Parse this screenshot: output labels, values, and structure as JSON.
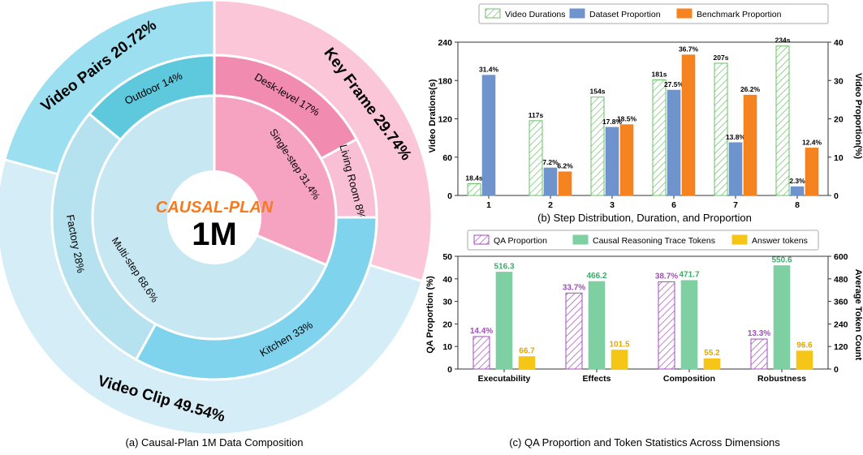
{
  "chart_data": [
    {
      "type": "pie",
      "caption": "(a) Causal-Plan 1M Data Composition",
      "center_title": "CAUSAL-PLAN",
      "center_value": "1M",
      "outer_ring": [
        {
          "label": "Video Pairs 20.72%",
          "value": 20.72,
          "color": "#9bdff0"
        },
        {
          "label": "Key Frame 29.74%",
          "value": 29.74,
          "color": "#fbc6d7"
        },
        {
          "label": "Video Clip 49.54%",
          "value": 49.54,
          "color": "#d4edf6"
        }
      ],
      "middle_ring": [
        {
          "label": "Outdoor 14%",
          "value": 14,
          "color": "#5ec8dc"
        },
        {
          "label": "Desk-level 17%",
          "value": 17,
          "color": "#f28bb0"
        },
        {
          "label": "Living Room 8%",
          "value": 8,
          "color": "#f9bfd4"
        },
        {
          "label": "Kitchen 33%",
          "value": 33,
          "color": "#7fd3ec"
        },
        {
          "label": "Factory 28%",
          "value": 28,
          "color": "#b6e1ee"
        }
      ],
      "inner_ring": [
        {
          "label": "Single-step 31.4%",
          "value": 31.4,
          "color": "#f6a3c1"
        },
        {
          "label": "Multi-step 68.6%",
          "value": 68.6,
          "color": "#c7e7f3"
        }
      ],
      "colors": {
        "center_title": "#f47b20",
        "center_value": "#000000"
      }
    },
    {
      "type": "bar",
      "caption": "(b) Step Distribution, Duration, and Proportion",
      "categories": [
        "1",
        "2",
        "3",
        "6",
        "7",
        "8"
      ],
      "series": [
        {
          "name": "Video Durations",
          "axis": "left",
          "values": [
            18.4,
            117,
            154,
            181,
            207,
            234
          ],
          "labels": [
            "18.4s",
            "117s",
            "154s",
            "181s",
            "207s",
            "234s"
          ],
          "color": "#6cbf6a",
          "pattern": "hatch"
        },
        {
          "name": "Dataset Proportion",
          "axis": "right",
          "values": [
            31.4,
            7.2,
            17.8,
            27.5,
            13.8,
            2.3
          ],
          "labels": [
            "31.4%",
            "7.2%",
            "17.8%",
            "27.5%",
            "13.8%",
            "2.3%"
          ],
          "color": "#6f93cc"
        },
        {
          "name": "Benchmark Proportion",
          "axis": "right",
          "values": [
            null,
            6.2,
            18.5,
            36.7,
            26.2,
            12.4
          ],
          "labels": [
            "",
            "6.2%",
            "18.5%",
            "36.7%",
            "26.2%",
            "12.4%"
          ],
          "color": "#f5831f"
        }
      ],
      "ylabel": "Video Drations(s)",
      "ylim": [
        0,
        240
      ],
      "yticks": [
        "0",
        "60",
        "120",
        "180",
        "240"
      ],
      "y2label": "Video Proportion(%)",
      "y2lim": [
        0,
        40
      ],
      "y2ticks": [
        "0",
        "10",
        "20",
        "30",
        "40"
      ],
      "legend": "top"
    },
    {
      "type": "bar",
      "caption": "(c) QA Proportion and Token Statistics Across Dimensions",
      "categories": [
        "Executability",
        "Effects",
        "Composition",
        "Robustness"
      ],
      "series": [
        {
          "name": "QA Proportion",
          "axis": "left",
          "values": [
            14.4,
            33.7,
            38.7,
            13.3
          ],
          "labels": [
            "14.4%",
            "33.7%",
            "38.7%",
            "13.3%"
          ],
          "color": "#a04fb8",
          "pattern": "hatch"
        },
        {
          "name": "Causal Reasoning Trace Tokens",
          "axis": "right",
          "values": [
            516.3,
            466.2,
            471.7,
            550.6
          ],
          "labels": [
            "516.3",
            "466.2",
            "471.7",
            "550.6"
          ],
          "color": "#7ed0a2"
        },
        {
          "name": "Answer tokens",
          "axis": "right",
          "values": [
            66.7,
            101.5,
            55.2,
            96.6
          ],
          "labels": [
            "66.7",
            "101.5",
            "55.2",
            "96.6"
          ],
          "color": "#f5c518"
        }
      ],
      "ylabel": "QA Proportion (%)",
      "ylim": [
        0,
        50
      ],
      "yticks": [
        "0",
        "10",
        "20",
        "30",
        "40",
        "50"
      ],
      "y2label": "Average Token Count",
      "y2lim": [
        0,
        600
      ],
      "y2ticks": [
        "0",
        "120",
        "240",
        "360",
        "480",
        "600"
      ],
      "legend": "top"
    }
  ]
}
